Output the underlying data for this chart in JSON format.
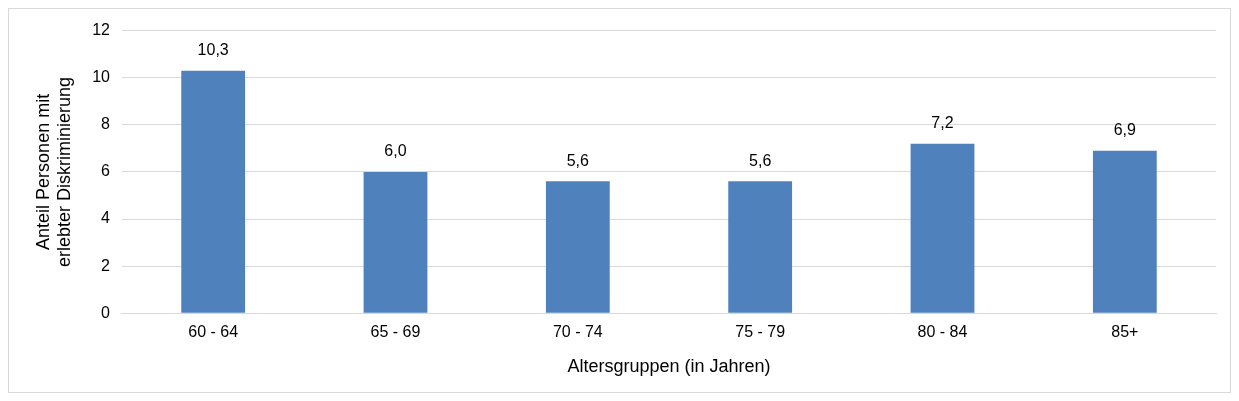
{
  "chart_data": {
    "type": "bar",
    "xlabel": "Altersgruppen (in Jahren)",
    "ylabel": "Anteil Personen mit erlebter Diskriminierung",
    "categories": [
      "60 - 64",
      "65 - 69",
      "70 - 74",
      "75 - 79",
      "80 - 84",
      "85+"
    ],
    "values": [
      10.3,
      6.0,
      5.6,
      5.6,
      7.2,
      6.9
    ],
    "value_labels": [
      "10,3",
      "6,0",
      "5,6",
      "5,6",
      "7,2",
      "6,9"
    ],
    "color": "#4f81bd",
    "ylim": [
      0,
      12
    ],
    "yticks": [
      0,
      2,
      4,
      6,
      8,
      10,
      12
    ],
    "grid": "y",
    "legend": false
  }
}
